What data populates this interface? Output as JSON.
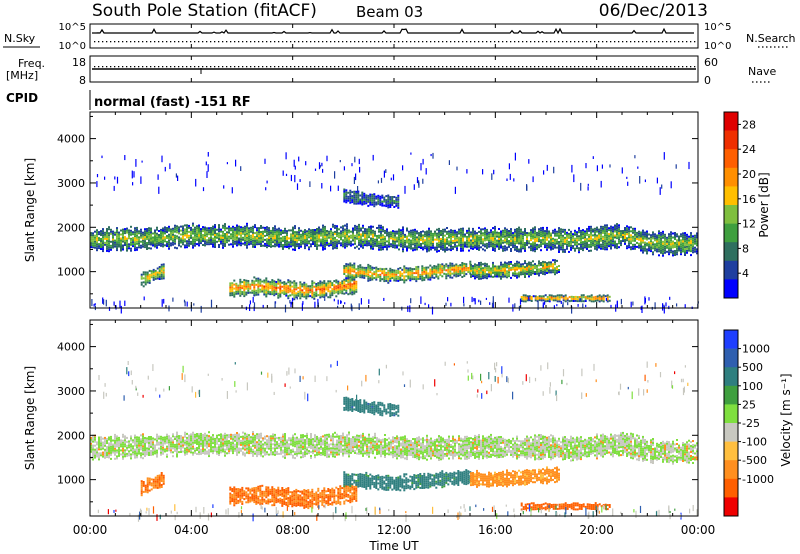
{
  "header": {
    "station": "South Pole Station (fitACF)",
    "beam": "Beam 03",
    "date": "06/Dec/2013"
  },
  "side_labels": {
    "nsky": "N.Sky",
    "nsearch": "N.Search",
    "freq": "Freq.",
    "freq_unit": "[MHz]",
    "nave": "Nave",
    "cpid": "CPID",
    "cpid_value": "normal (fast) -151 RF"
  },
  "small_axes": {
    "noise_left_top": "10^5",
    "noise_left_bottom": "10^0",
    "noise_right_top": "10^5",
    "noise_right_bottom": "10^0",
    "freq_left_top": "18",
    "freq_left_bottom": "8",
    "nave_right_top": "60",
    "nave_right_bottom": "0"
  },
  "colors": {
    "power": [
      "#0000ff",
      "#1f3f9f",
      "#2f6f5f",
      "#3f9f3f",
      "#7fbf3f",
      "#ffbf00",
      "#ff8f00",
      "#ff5f00",
      "#ef2f00",
      "#df0000"
    ],
    "velocity": [
      "#1f3fff",
      "#2f5faf",
      "#2f7f7f",
      "#3f9f3f",
      "#7fdf3f",
      "#c8c8c0",
      "#ffbf3f",
      "#ff8f1f",
      "#ff5f00",
      "#ef0000"
    ]
  },
  "chart_data": [
    {
      "type": "heatmap",
      "name": "power",
      "xlabel": "",
      "ylabel": "Slant Range [km]",
      "xlim": [
        0,
        24
      ],
      "ylim": [
        180,
        4600
      ],
      "yticks": [
        "1000",
        "2000",
        "3000",
        "4000"
      ],
      "colorbar": {
        "label": "Power [dB]",
        "ticks": [
          "4",
          "8",
          "12",
          "16",
          "20",
          "24",
          "28"
        ],
        "range": [
          0,
          30
        ]
      },
      "bands": [
        {
          "x0": 0.0,
          "x1": 24.0,
          "range_center": [
            1700,
            1720,
            1730,
            1760,
            1800,
            1780,
            1800,
            1760,
            1740,
            1750,
            1780,
            1760,
            1720,
            1700,
            1700,
            1720,
            1720,
            1700,
            1720,
            1680,
            1740,
            1800,
            1640,
            1600,
            1620
          ],
          "width": 450,
          "power": 14
        },
        {
          "x0": 2.0,
          "x1": 2.9,
          "range_center": [
            800,
            1000
          ],
          "width": 280,
          "power": 18
        },
        {
          "x0": 5.5,
          "x1": 10.5,
          "range_center": [
            600,
            650,
            600,
            550,
            600,
            700
          ],
          "width": 350,
          "power": 22
        },
        {
          "x0": 10.0,
          "x1": 15.0,
          "range_center": [
            1000,
            950,
            900,
            950,
            1000,
            1050
          ],
          "width": 300,
          "power": 20
        },
        {
          "x0": 15.0,
          "x1": 18.5,
          "range_center": [
            1000,
            1000,
            1050,
            1100
          ],
          "width": 300,
          "power": 17
        },
        {
          "x0": 10.0,
          "x1": 12.2,
          "range_center": [
            2700,
            2600,
            2550
          ],
          "width": 250,
          "power": 8
        },
        {
          "x0": 17.0,
          "x1": 20.5,
          "range_center": [
            380,
            380,
            380
          ],
          "width": 120,
          "power": 21
        }
      ]
    },
    {
      "type": "heatmap",
      "name": "velocity",
      "xlabel": "Time UT",
      "ylabel": "Slant Range [km]",
      "xlim": [
        0,
        24
      ],
      "ylim": [
        180,
        4600
      ],
      "xticks": [
        "00:00",
        "04:00",
        "08:00",
        "12:00",
        "16:00",
        "20:00",
        "00:00"
      ],
      "yticks": [
        "1000",
        "2000",
        "3000",
        "4000"
      ],
      "colorbar": {
        "label": "Velocity [m s⁻¹]",
        "ticks": [
          "1000",
          "500",
          "100",
          "25",
          "-25",
          "-100",
          "-500",
          "-1000"
        ]
      },
      "bands": [
        {
          "x0": 0.0,
          "x1": 24.0,
          "range_center": [
            1700,
            1720,
            1730,
            1760,
            1800,
            1780,
            1800,
            1760,
            1740,
            1750,
            1780,
            1760,
            1720,
            1700,
            1700,
            1720,
            1720,
            1700,
            1720,
            1680,
            1740,
            1800,
            1640,
            1600,
            1620
          ],
          "width": 450,
          "velocity": 0
        },
        {
          "x0": 2.0,
          "x1": 2.9,
          "range_center": [
            800,
            1000
          ],
          "width": 280,
          "velocity": -300
        },
        {
          "x0": 5.5,
          "x1": 10.5,
          "range_center": [
            600,
            650,
            600,
            550,
            600,
            700
          ],
          "width": 350,
          "velocity": -300
        },
        {
          "x0": 10.0,
          "x1": 15.0,
          "range_center": [
            1000,
            950,
            900,
            950,
            1000,
            1050
          ],
          "width": 300,
          "velocity": 150
        },
        {
          "x0": 15.0,
          "x1": 18.5,
          "range_center": [
            1000,
            1000,
            1050,
            1100
          ],
          "width": 300,
          "velocity": -150
        },
        {
          "x0": 10.0,
          "x1": 12.2,
          "range_center": [
            2700,
            2600,
            2550
          ],
          "width": 250,
          "velocity": 200
        },
        {
          "x0": 17.0,
          "x1": 20.5,
          "range_center": [
            380,
            380,
            380
          ],
          "width": 120,
          "velocity": -400
        }
      ]
    }
  ]
}
